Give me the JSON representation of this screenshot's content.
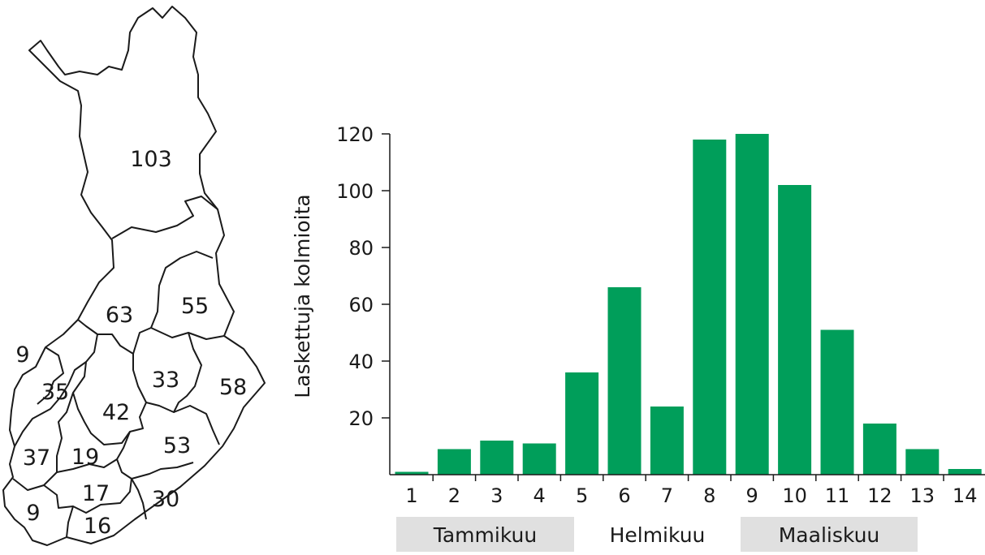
{
  "map": {
    "regions": [
      {
        "id": "lapland",
        "value": "103"
      },
      {
        "id": "north-ostrobothnia",
        "value": "63"
      },
      {
        "id": "kainuu",
        "value": "55"
      },
      {
        "id": "ostrobothnia-coast",
        "value": "9"
      },
      {
        "id": "ostrobothnia",
        "value": "35"
      },
      {
        "id": "central-finland",
        "value": "42"
      },
      {
        "id": "north-savo",
        "value": "33"
      },
      {
        "id": "north-karelia",
        "value": "58"
      },
      {
        "id": "satakunta",
        "value": "37"
      },
      {
        "id": "pirkanmaa",
        "value": "19"
      },
      {
        "id": "south-savo",
        "value": "53"
      },
      {
        "id": "hame",
        "value": "17"
      },
      {
        "id": "southwest",
        "value": "9"
      },
      {
        "id": "uusimaa",
        "value": "16"
      },
      {
        "id": "kymenlaakso",
        "value": "30"
      }
    ]
  },
  "chart_data": {
    "type": "bar",
    "categories": [
      "1",
      "2",
      "3",
      "4",
      "5",
      "6",
      "7",
      "8",
      "9",
      "10",
      "11",
      "12",
      "13",
      "14"
    ],
    "values": [
      1,
      9,
      12,
      11,
      36,
      66,
      24,
      118,
      120,
      102,
      51,
      18,
      9,
      2
    ],
    "ylabel": "Laskettuja kolmioita",
    "xlabel": "",
    "ylim": [
      0,
      120
    ],
    "yticks": [
      "20",
      "40",
      "60",
      "80",
      "100",
      "120"
    ],
    "bar_color": "#009e5a",
    "month_groups": [
      {
        "label": "Tammikuu",
        "shaded": true
      },
      {
        "label": "Helmikuu",
        "shaded": false
      },
      {
        "label": "Maaliskuu",
        "shaded": true
      }
    ],
    "month_shade_color": "#e0e0e0",
    "grid": false
  }
}
